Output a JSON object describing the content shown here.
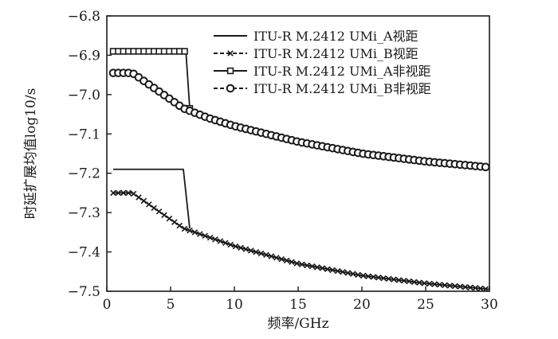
{
  "chart_data": {
    "type": "line",
    "xlabel": "频率/GHz",
    "ylabel": "时延扩展均值log10/s",
    "xlim": [
      0,
      30
    ],
    "ylim": [
      -7.5,
      -6.8
    ],
    "xticks": [
      "0",
      "5",
      "10",
      "15",
      "20",
      "25",
      "30"
    ],
    "yticks": [
      "−6.8",
      "−6.9",
      "−7.0",
      "−7.1",
      "−7.2",
      "−7.3",
      "−7.4",
      "−7.5"
    ],
    "grid": false,
    "legend_position": "top-right",
    "series": [
      {
        "name": "ITU-R M.2412 UMi_A视距",
        "marker": "none",
        "line_style": "solid",
        "color": "#1a1a1a",
        "x": [
          0.5,
          6.0,
          6.5
        ],
        "y": [
          -7.19,
          -7.19,
          -7.34
        ]
      },
      {
        "name": "ITU-R M.2412 UMi_B视距",
        "marker": "x",
        "line_style": "dashed",
        "color": "#1a1a1a",
        "x": [
          0.5,
          2.0,
          6.0,
          10.0,
          15.0,
          20.0,
          25.0,
          30.0
        ],
        "y": [
          -7.25,
          -7.25,
          -7.34,
          -7.385,
          -7.43,
          -7.46,
          -7.48,
          -7.495
        ]
      },
      {
        "name": "ITU-R M.2412 UMi_A非视距",
        "marker": "square",
        "line_style": "solid",
        "color": "#1a1a1a",
        "x": [
          0.5,
          6.2,
          6.5
        ],
        "y": [
          -6.89,
          -6.89,
          -7.035
        ]
      },
      {
        "name": "ITU-R M.2412 UMi_B非视距",
        "marker": "circle",
        "line_style": "dashed",
        "color": "#1a1a1a",
        "x": [
          0.5,
          2.0,
          4.0,
          6.0,
          8.0,
          10.0,
          15.0,
          20.0,
          25.0,
          30.0
        ],
        "y": [
          -6.945,
          -6.945,
          -6.99,
          -7.035,
          -7.06,
          -7.08,
          -7.12,
          -7.15,
          -7.17,
          -7.185
        ]
      }
    ]
  }
}
